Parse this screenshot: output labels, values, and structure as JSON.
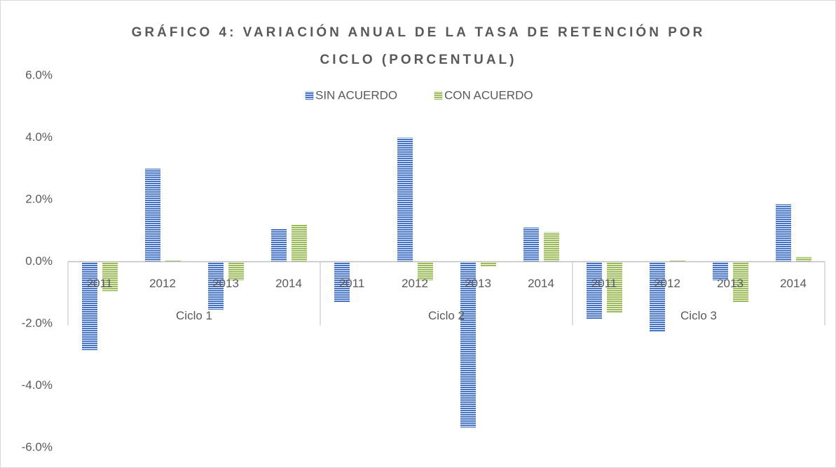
{
  "chart_data": {
    "type": "bar",
    "title": [
      "GRÁFICO 4: VARIACIÓN ANUAL DE LA TASA DE RETENCIÓN POR",
      "CICLO (PORCENTUAL)"
    ],
    "categories": [
      "2011",
      "2012",
      "2013",
      "2014",
      "2011",
      "2012",
      "2013",
      "2014",
      "2011",
      "2012",
      "2013",
      "2014"
    ],
    "groups": [
      "Ciclo 1",
      "Ciclo 2",
      "Ciclo 3"
    ],
    "series": [
      {
        "name": "SIN ACUERDO",
        "color": "#4472c4",
        "values": [
          -2.85,
          3.0,
          -1.55,
          1.05,
          -1.3,
          4.0,
          -5.35,
          1.1,
          -1.85,
          -2.25,
          -0.6,
          1.85
        ]
      },
      {
        "name": "CON ACUERDO",
        "color": "#9bbb59",
        "values": [
          -0.95,
          0.05,
          -0.6,
          1.2,
          -0.02,
          -0.6,
          -0.15,
          0.95,
          -1.65,
          0.05,
          -1.3,
          0.15
        ]
      }
    ],
    "ylim": [
      -6,
      6
    ],
    "yticks": [
      {
        "value": -6,
        "label": "-6.0%"
      },
      {
        "value": -4,
        "label": "-4.0%"
      },
      {
        "value": -2,
        "label": "-2.0%"
      },
      {
        "value": 0,
        "label": "0.0%"
      },
      {
        "value": 2,
        "label": "2.0%"
      },
      {
        "value": 4,
        "label": "4.0%"
      },
      {
        "value": 6,
        "label": "6.0%"
      }
    ],
    "grid": false,
    "legend": "top"
  }
}
